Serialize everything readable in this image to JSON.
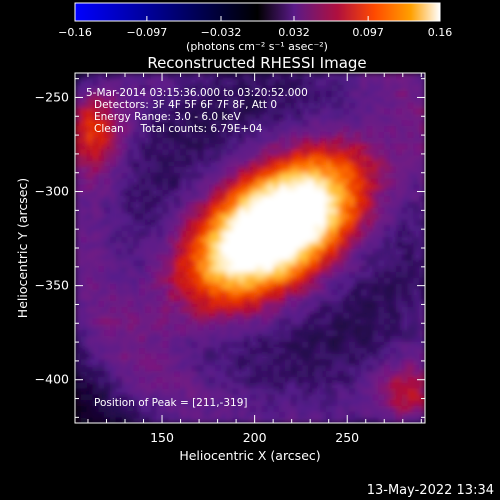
{
  "chart_data": {
    "type": "heatmap",
    "title": "Reconstructed RHESSI Image",
    "xlabel": "Heliocentric X (arcsec)",
    "ylabel": "Heliocentric Y (arcsec)",
    "xlim": [
      103,
      292
    ],
    "ylim": [
      -423,
      -237
    ],
    "x_ticks": [
      150,
      200,
      250
    ],
    "y_ticks": [
      -250,
      -300,
      -350,
      -400
    ],
    "colorbar": {
      "range": [
        -0.16,
        0.16
      ],
      "ticks": [
        "-0.16",
        "-0.097",
        "-0.032",
        "0.032",
        "0.097",
        "0.16"
      ],
      "unit": "(photons cm⁻² s⁻¹ asec⁻²)",
      "colormap": [
        "#0000ff",
        "#000000",
        "#3a0f6b",
        "#7a1f8f",
        "#c0143c",
        "#ff4000",
        "#ff8a00",
        "#ffd24a",
        "#ffffff"
      ]
    },
    "peak": {
      "x": 211,
      "y": -319,
      "value": 0.16
    },
    "annotations": [
      "5-Mar-2014 03:15:36.000 to 03:20:52.000",
      "Detectors: 3F 4F 5F 6F 7F 8F, Att 0",
      "Energy Range: 3.0 - 6.0 keV",
      "Clean     Total counts: 6.79E+04",
      "Position of Peak = [211,-319]"
    ]
  },
  "footer": {
    "timestamp": "13-May-2022 13:34"
  }
}
